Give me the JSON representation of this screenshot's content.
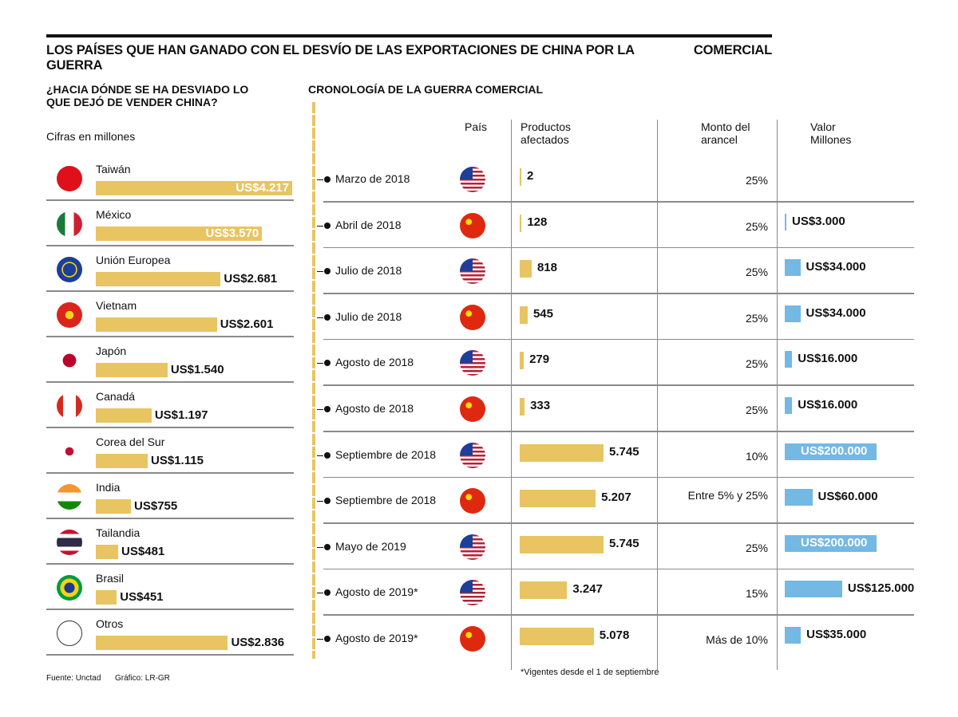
{
  "header": {
    "title_part1": "LOS PAÍSES QUE HAN GANADO CON EL DESVÍO DE LAS EXPORTACIONES DE CHINA POR LA GUERRA",
    "title_part2": "COMERCIAL"
  },
  "colors": {
    "bar_yellow": "#e8c462",
    "bar_blue": "#74b8e4"
  },
  "chart_data": [
    {
      "type": "bar",
      "orientation": "horizontal",
      "title": "¿HACIA DÓNDE SE HA DESVIADO LO QUE DEJÓ DE VENDER CHINA?",
      "subtitle": "Cifras en millones",
      "categories": [
        "Taiwán",
        "México",
        "Unión Europea",
        "Vietnam",
        "Japón",
        "Canadá",
        "Corea del Sur",
        "India",
        "Tailandia",
        "Brasil",
        "Otros"
      ],
      "values": [
        4217,
        3570,
        2681,
        2601,
        1540,
        1197,
        1115,
        755,
        481,
        451,
        2836
      ],
      "labels": [
        "US$4.217",
        "US$3.570",
        "US$2.681",
        "US$2.601",
        "US$1.540",
        "US$1.197",
        "US$1.115",
        "US$755",
        "US$481",
        "US$451",
        "US$2.836"
      ],
      "flags": [
        "taiwan",
        "mexico",
        "eu",
        "vietnam",
        "japan",
        "canada",
        "south-korea",
        "india",
        "thailand",
        "brazil",
        "none"
      ]
    },
    {
      "type": "table",
      "title": "CRONOLOGÍA DE LA GUERRA COMERCIAL",
      "columns": {
        "pais": "País",
        "productos": "Productos afectados",
        "monto": "Monto del arancel",
        "valor": "Valor Millones"
      },
      "rows": [
        {
          "fecha": "Marzo de 2018",
          "pais": "usa",
          "productos": 2,
          "productos_label": "2",
          "arancel": "25%",
          "valor": null,
          "valor_label": ""
        },
        {
          "fecha": "Abril de 2018",
          "pais": "china",
          "productos": 128,
          "productos_label": "128",
          "arancel": "25%",
          "valor": 3000,
          "valor_label": "US$3.000"
        },
        {
          "fecha": "Julio de 2018",
          "pais": "usa",
          "productos": 818,
          "productos_label": "818",
          "arancel": "25%",
          "valor": 34000,
          "valor_label": "US$34.000"
        },
        {
          "fecha": "Julio de 2018",
          "pais": "china",
          "productos": 545,
          "productos_label": "545",
          "arancel": "25%",
          "valor": 34000,
          "valor_label": "US$34.000"
        },
        {
          "fecha": "Agosto de 2018",
          "pais": "usa",
          "productos": 279,
          "productos_label": "279",
          "arancel": "25%",
          "valor": 16000,
          "valor_label": "US$16.000"
        },
        {
          "fecha": "Agosto de 2018",
          "pais": "china",
          "productos": 333,
          "productos_label": "333",
          "arancel": "25%",
          "valor": 16000,
          "valor_label": "US$16.000"
        },
        {
          "fecha": "Septiembre de 2018",
          "pais": "usa",
          "productos": 5745,
          "productos_label": "5.745",
          "arancel": "10%",
          "valor": 200000,
          "valor_label": "US$200.000"
        },
        {
          "fecha": "Septiembre de 2018",
          "pais": "china",
          "productos": 5207,
          "productos_label": "5.207",
          "arancel": "Entre 5% y 25%",
          "valor": 60000,
          "valor_label": "US$60.000"
        },
        {
          "fecha": "Mayo de 2019",
          "pais": "usa",
          "productos": 5745,
          "productos_label": "5.745",
          "arancel": "25%",
          "valor": 200000,
          "valor_label": "US$200.000"
        },
        {
          "fecha": "Agosto de 2019*",
          "pais": "usa",
          "productos": 3247,
          "productos_label": "3.247",
          "arancel": "15%",
          "valor": 125000,
          "valor_label": "US$125.000"
        },
        {
          "fecha": "Agosto de 2019*",
          "pais": "china",
          "productos": 5078,
          "productos_label": "5.078",
          "arancel": "Más de 10%",
          "valor": 35000,
          "valor_label": "US$35.000"
        }
      ]
    }
  ],
  "footer": {
    "source": "Fuente: Unctad",
    "graphic": "Gráfico: LR-GR",
    "note": "*Vigentes desde el 1 de septiembre"
  }
}
